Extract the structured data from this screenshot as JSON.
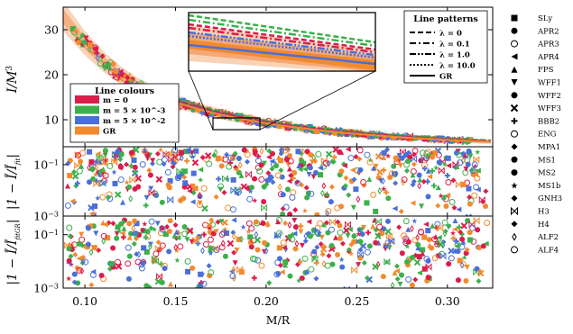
{
  "chart_data": [
    {
      "type": "scatter",
      "panel": "top",
      "ylabel": "I/M^3",
      "xlim": [
        0.088,
        0.325
      ],
      "ylim": [
        4,
        35
      ],
      "yticks": [
        10,
        20,
        30
      ],
      "fit_curve": [
        {
          "x": 0.088,
          "y": 33.0
        },
        {
          "x": 0.1,
          "y": 27.0
        },
        {
          "x": 0.11,
          "y": 23.0
        },
        {
          "x": 0.12,
          "y": 19.8
        },
        {
          "x": 0.13,
          "y": 17.4
        },
        {
          "x": 0.14,
          "y": 15.5
        },
        {
          "x": 0.15,
          "y": 14.0
        },
        {
          "x": 0.16,
          "y": 12.8
        },
        {
          "x": 0.17,
          "y": 11.7
        },
        {
          "x": 0.18,
          "y": 10.8
        },
        {
          "x": 0.19,
          "y": 10.0
        },
        {
          "x": 0.2,
          "y": 9.3
        },
        {
          "x": 0.21,
          "y": 8.7
        },
        {
          "x": 0.22,
          "y": 8.2
        },
        {
          "x": 0.23,
          "y": 7.7
        },
        {
          "x": 0.24,
          "y": 7.3
        },
        {
          "x": 0.25,
          "y": 6.9
        },
        {
          "x": 0.26,
          "y": 6.6
        },
        {
          "x": 0.27,
          "y": 6.3
        },
        {
          "x": 0.28,
          "y": 6.0
        },
        {
          "x": 0.29,
          "y": 5.8
        },
        {
          "x": 0.3,
          "y": 5.55
        },
        {
          "x": 0.31,
          "y": 5.35
        },
        {
          "x": 0.325,
          "y": 5.1
        }
      ]
    },
    {
      "type": "scatter",
      "panel": "middle",
      "ylabel": "|1 - Ī/Ī_fit|",
      "yscale": "log",
      "ylim": [
        0.001,
        0.5
      ],
      "yticks": [
        "10^-1",
        "10^-3"
      ]
    },
    {
      "type": "scatter",
      "panel": "bottom",
      "ylabel": "|1 - Ī/Ī_fitGR|",
      "xlabel": "M/R",
      "yscale": "log",
      "ylim": [
        0.001,
        0.5
      ],
      "xticks": [
        "0.10",
        "0.15",
        "0.20",
        "0.25",
        "0.30"
      ],
      "yticks": [
        "10^-1",
        "10^-3"
      ]
    }
  ],
  "series_colors": {
    "m0": "#dc1c4b",
    "m5e-3": "#3cb04a",
    "m5e-2": "#4a6fd8",
    "GR": "#f28a2e"
  },
  "line_colours_legend": {
    "title": "Line colours",
    "items": [
      {
        "label": "m = 0",
        "color": "#dc1c4b"
      },
      {
        "label": "m = 5 × 10^-3",
        "color": "#3cb04a"
      },
      {
        "label": "m = 5 × 10^-2",
        "color": "#4a6fd8"
      },
      {
        "label": "GR",
        "color": "#f28a2e"
      }
    ]
  },
  "line_patterns_legend": {
    "title": "Line patterns",
    "items": [
      {
        "label": "λ = 0",
        "dash": "dashed"
      },
      {
        "label": "λ = 0.1",
        "dash": "dashdot"
      },
      {
        "label": "λ = 1.0",
        "dash": "dashdotdot"
      },
      {
        "label": "λ = 10.0",
        "dash": "dotted"
      },
      {
        "label": "GR",
        "dash": "solid"
      }
    ]
  },
  "eos_legend": [
    {
      "label": "SLy",
      "marker": "square"
    },
    {
      "label": "APR2",
      "marker": "circle"
    },
    {
      "label": "APR3",
      "marker": "circled-dot"
    },
    {
      "label": "APR4",
      "marker": "triangle-left"
    },
    {
      "label": "FPS",
      "marker": "triangle-up"
    },
    {
      "label": "WFF1",
      "marker": "triangle-down"
    },
    {
      "label": "WFF2",
      "marker": "octagon"
    },
    {
      "label": "WFF3",
      "marker": "x"
    },
    {
      "label": "BBB2",
      "marker": "plus"
    },
    {
      "label": "ENG",
      "marker": "circled-plus"
    },
    {
      "label": "MPA1",
      "marker": "diamond"
    },
    {
      "label": "MS1",
      "marker": "hexagon"
    },
    {
      "label": "MS2",
      "marker": "pentagon"
    },
    {
      "label": "MS1b",
      "marker": "star"
    },
    {
      "label": "GNH3",
      "marker": "spade"
    },
    {
      "label": "H3",
      "marker": "bowtie"
    },
    {
      "label": "H4",
      "marker": "club"
    },
    {
      "label": "ALF2",
      "marker": "thin-diamond"
    },
    {
      "label": "ALF4",
      "marker": "heart"
    }
  ]
}
